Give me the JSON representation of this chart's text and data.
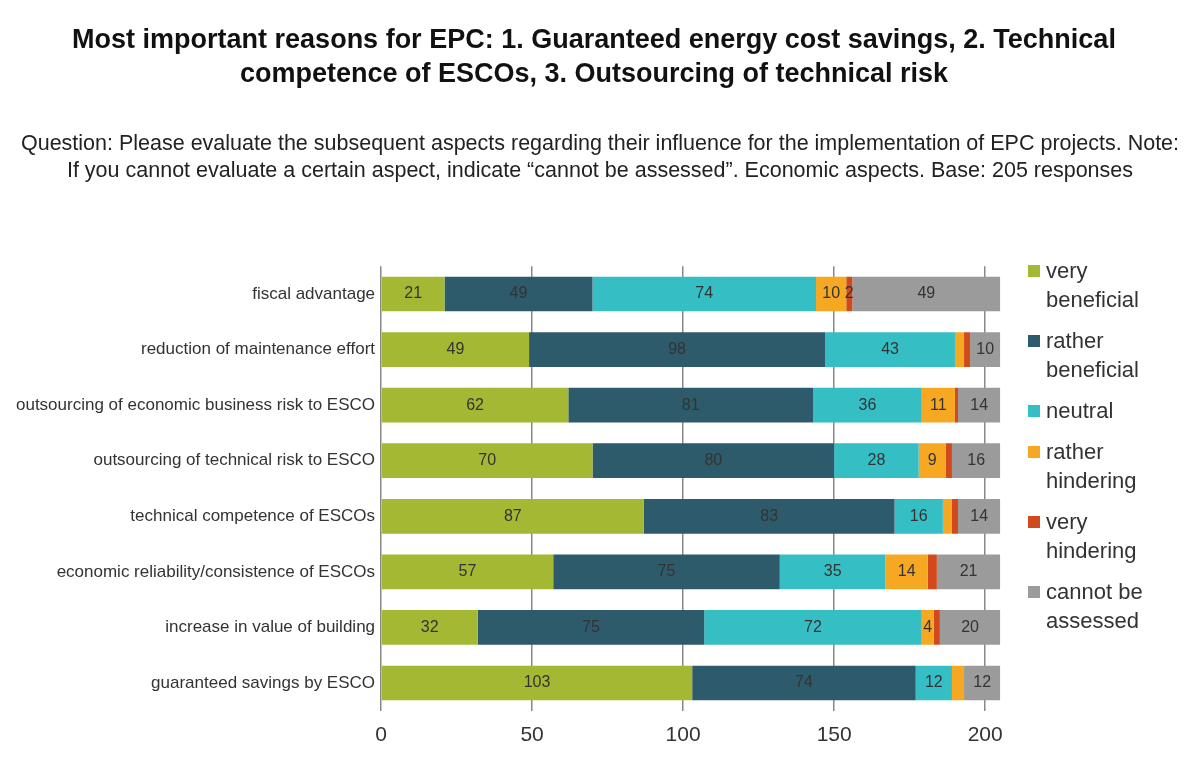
{
  "chart_data": {
    "type": "bar",
    "orientation": "horizontal",
    "stacked": true,
    "title": "Most important reasons for EPC: 1. Guaranteed energy cost savings, 2. Technical competence of ESCOs, 3. Outsourcing of technical risk",
    "subtitle": "Question: Please evaluate the subsequent aspects regarding their influence for the implementation of EPC projects. Note: If you cannot evaluate a certain aspect, indicate “cannot be assessed”. Economic aspects. Base: 205 responses",
    "categories": [
      "fiscal advantage",
      "reduction of maintenance effort",
      "outsourcing of economic business risk to ESCO",
      "outsourcing of technical risk to ESCO",
      "technical competence of ESCOs",
      "economic reliability/consistence of ESCOs",
      "increase in value of building",
      "guaranteed savings by ESCO"
    ],
    "series": [
      {
        "name": "very beneficial",
        "color": "#a5b833",
        "values": [
          21,
          49,
          62,
          70,
          87,
          57,
          32,
          103
        ]
      },
      {
        "name": "rather beneficial",
        "color": "#2e5b6b",
        "values": [
          49,
          98,
          81,
          80,
          83,
          75,
          75,
          74
        ]
      },
      {
        "name": "neutral",
        "color": "#35bfc4",
        "values": [
          74,
          43,
          36,
          28,
          16,
          35,
          72,
          12
        ]
      },
      {
        "name": "rather hindering",
        "color": "#f7a823",
        "values": [
          10,
          3,
          11,
          9,
          3,
          14,
          4,
          4
        ],
        "value_labels": [
          "10",
          null,
          "11",
          "9",
          null,
          "14",
          "4",
          null
        ]
      },
      {
        "name": "very hindering",
        "color": "#d24a1c",
        "values": [
          2,
          2,
          1,
          2,
          2,
          3,
          2,
          0
        ],
        "value_labels": [
          "2",
          null,
          null,
          null,
          null,
          null,
          null,
          null
        ]
      },
      {
        "name": "cannot be assessed",
        "color": "#9b9b9b",
        "values": [
          49,
          10,
          14,
          16,
          14,
          21,
          20,
          12
        ]
      }
    ],
    "xlim": [
      0,
      205
    ],
    "xticks": [
      0,
      50,
      100,
      150,
      200
    ],
    "grid": "x",
    "legend": "right",
    "data_labels": true
  }
}
